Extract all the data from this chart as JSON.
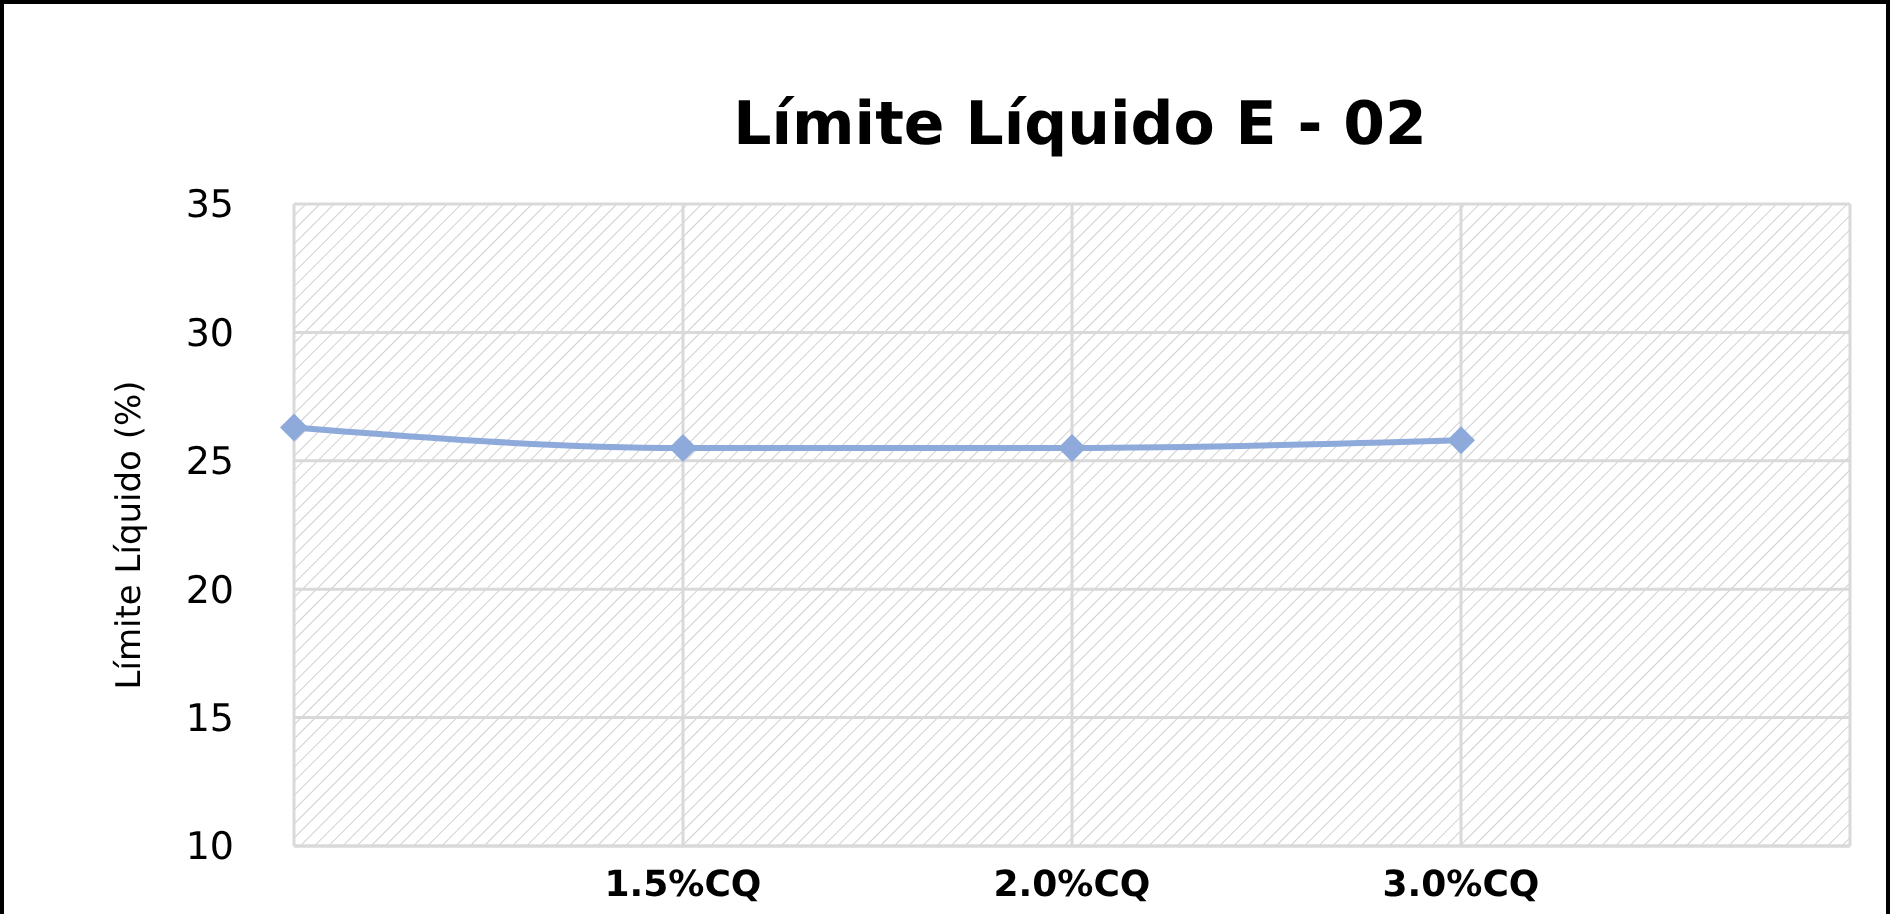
{
  "chart_data": {
    "type": "line",
    "title": "Límite Líquido E - 02",
    "ylabel": "Límite Líquido (%)",
    "categories": [
      null,
      "1.5%CQ",
      "2.0%CQ",
      "3.0%CQ",
      null
    ],
    "series": [
      {
        "color": "#8eaadb",
        "values": [
          26.3,
          25.5,
          25.5,
          25.8,
          null
        ]
      }
    ],
    "ylim": [
      10,
      35
    ],
    "yticks": [
      10,
      15,
      20,
      25,
      30,
      35
    ],
    "grid": true,
    "marker": "diamond",
    "line_style": "solid"
  }
}
